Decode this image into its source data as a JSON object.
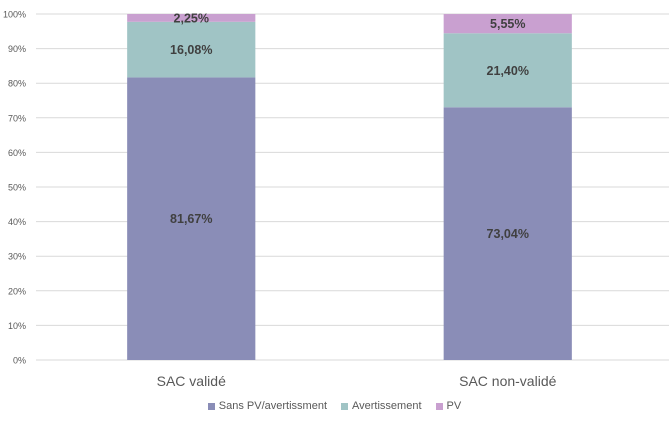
{
  "chart_data": {
    "type": "bar",
    "stacked": true,
    "percent_stacked": true,
    "categories": [
      "SAC validé",
      "SAC non-validé"
    ],
    "series": [
      {
        "name": "Sans PV/avertissment",
        "values": [
          81.67,
          73.04
        ],
        "labels": [
          "81,67%",
          "73,04%"
        ],
        "color": "#8a8db7"
      },
      {
        "name": "Avertissement",
        "values": [
          16.08,
          21.4
        ],
        "labels": [
          "16,08%",
          "21,40%"
        ],
        "color": "#a0c4c5"
      },
      {
        "name": "PV",
        "values": [
          2.25,
          5.55
        ],
        "labels": [
          "2,25%",
          "5,55%"
        ],
        "color": "#c9a0d0"
      }
    ],
    "y_ticks": [
      "0%",
      "10%",
      "20%",
      "30%",
      "40%",
      "50%",
      "60%",
      "70%",
      "80%",
      "90%",
      "100%"
    ],
    "ylim": [
      0,
      100
    ],
    "grid": true,
    "legend_position": "bottom",
    "label_color": "#404040",
    "axis_text_color": "#595959",
    "grid_color": "#d9d9d9"
  }
}
